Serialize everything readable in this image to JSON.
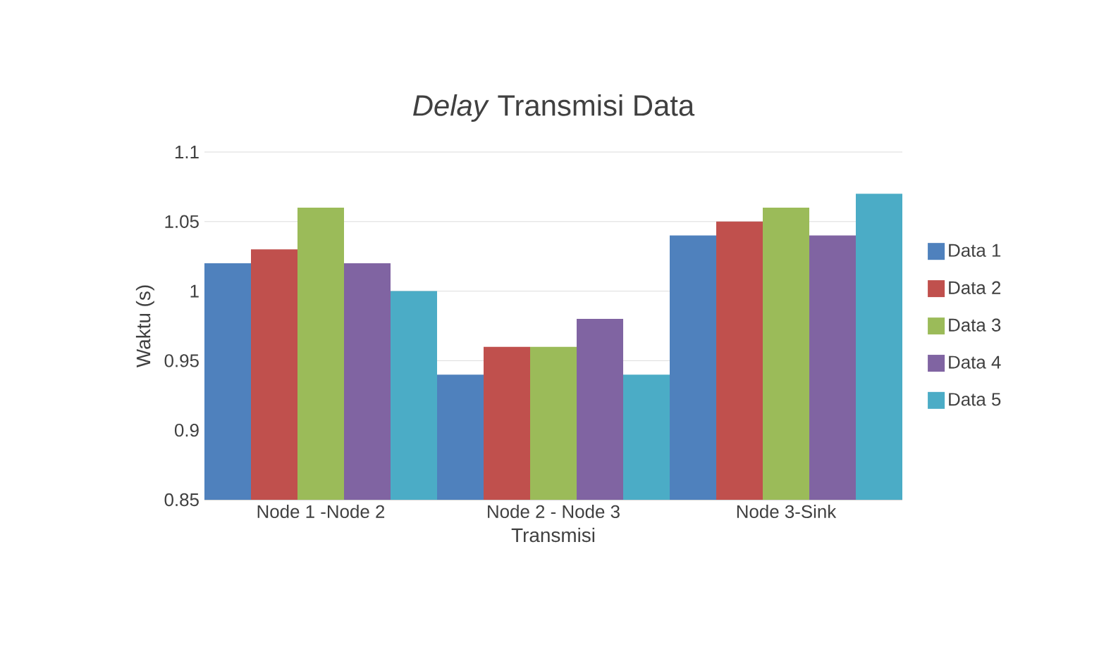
{
  "chart_data": {
    "type": "bar",
    "title": "*Delay* Transmisi Data",
    "xlabel": "Transmisi",
    "ylabel": "Waktu (s)",
    "categories": [
      "Node 1 -Node 2",
      "Node 2 - Node 3",
      "Node 3-Sink"
    ],
    "series": [
      {
        "name": "Data 1",
        "color": "#4f81bd",
        "values": [
          1.02,
          0.94,
          1.04
        ]
      },
      {
        "name": "Data 2",
        "color": "#c0504d",
        "values": [
          1.03,
          0.96,
          1.05
        ]
      },
      {
        "name": "Data 3",
        "color": "#9bbb59",
        "values": [
          1.06,
          0.96,
          1.06
        ]
      },
      {
        "name": "Data 4",
        "color": "#8064a2",
        "values": [
          1.02,
          0.98,
          1.04
        ]
      },
      {
        "name": "Data 5",
        "color": "#4bacc6",
        "values": [
          1.0,
          0.94,
          1.07
        ]
      }
    ],
    "ylim": [
      0.85,
      1.1
    ],
    "yticks": [
      0.85,
      0.9,
      0.95,
      1,
      1.05,
      1.1
    ],
    "grid": "y",
    "legend": "right"
  }
}
